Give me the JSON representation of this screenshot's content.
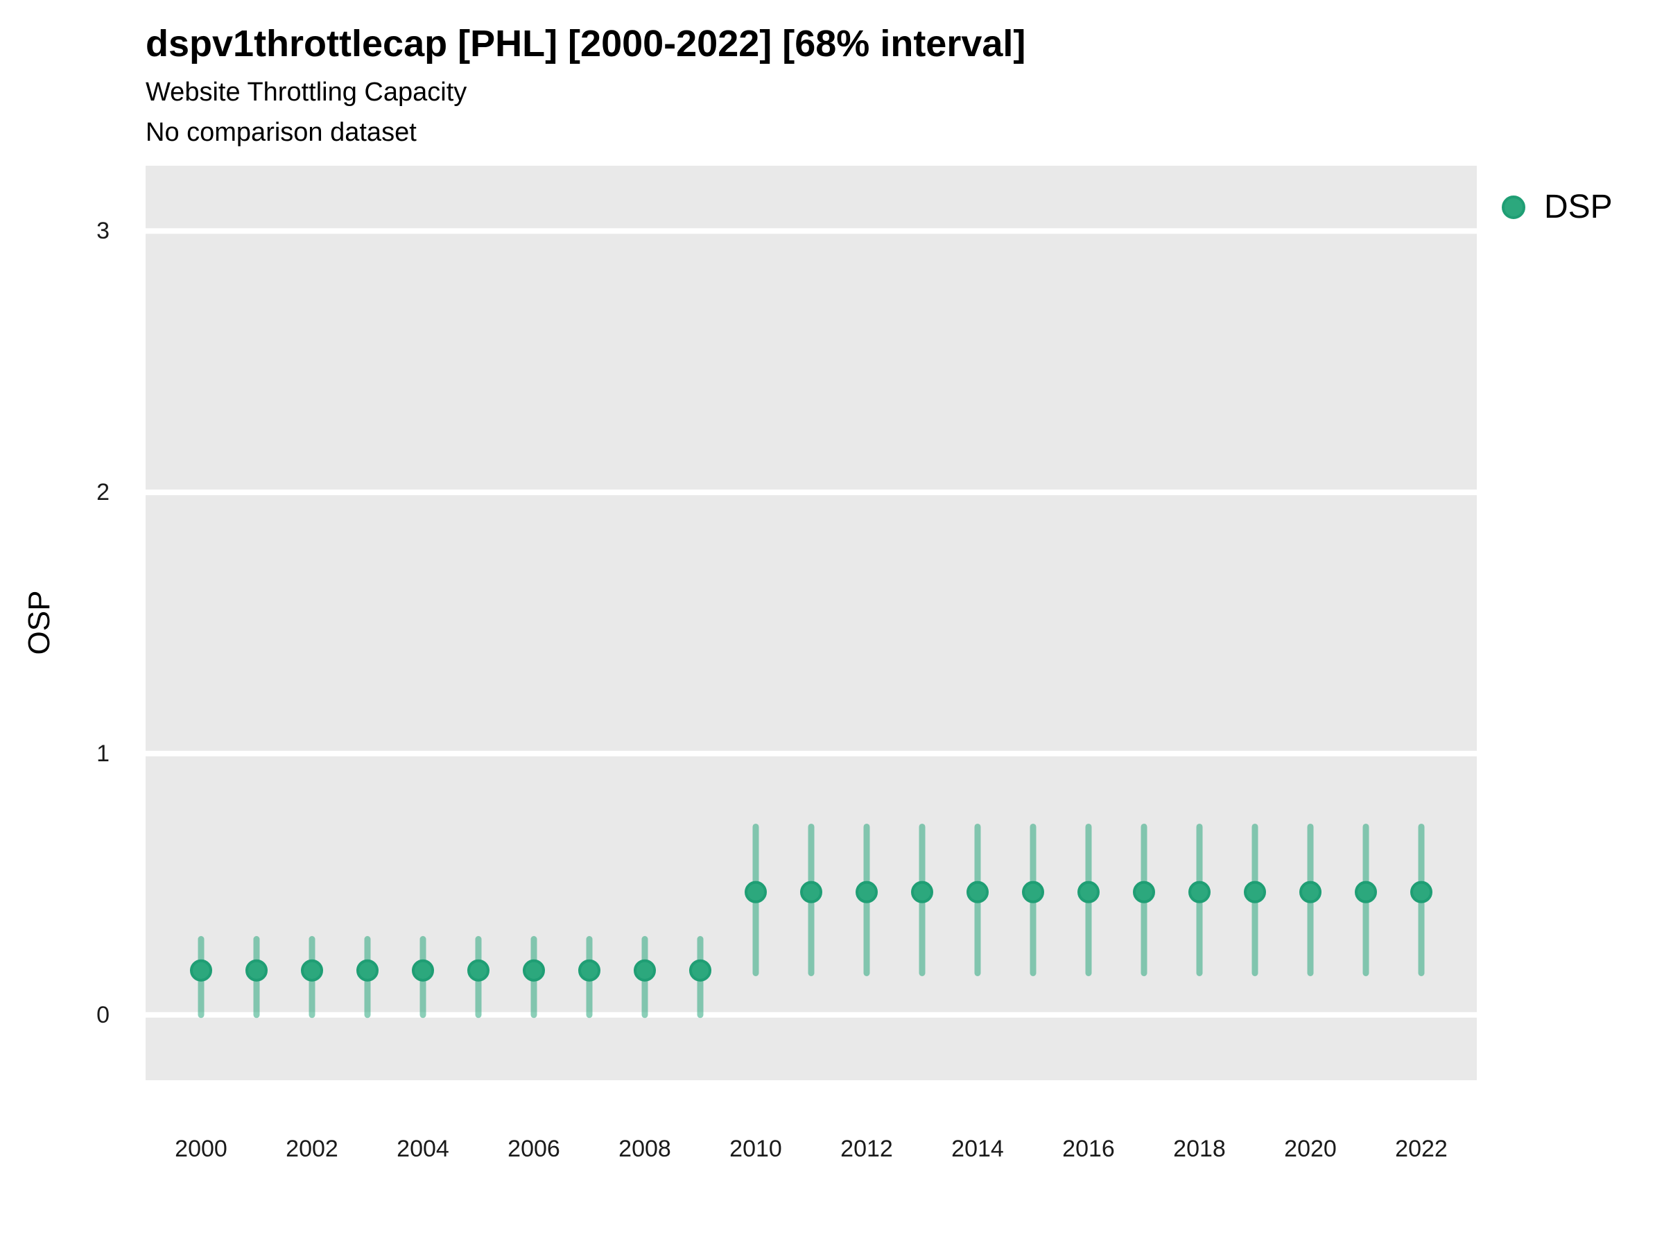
{
  "header": {
    "title": "dspv1throttlecap [PHL] [2000-2022] [68% interval]",
    "subtitle": "Website Throttling Capacity",
    "note": "No comparison dataset"
  },
  "axes": {
    "y_title": "OSP"
  },
  "legend": {
    "items": [
      {
        "label": "DSP",
        "marker": "circle-icon",
        "color": "#2ca87d"
      }
    ]
  },
  "colors": {
    "point_fill": "#2ca87d",
    "point_stroke": "#1f9e74",
    "errorbar": "rgba(44, 168, 125, 0.55)",
    "panel_bg": "#e9e9e9",
    "grid": "#ffffff",
    "tick_text": "#1a1a1a"
  },
  "chart_data": {
    "type": "scatter",
    "title": "dspv1throttlecap [PHL] [2000-2022] [68% interval]",
    "subtitle": "Website Throttling Capacity",
    "note": "No comparison dataset",
    "ylabel": "OSP",
    "xlabel": "",
    "interval": "68%",
    "xlim": [
      1999,
      2023
    ],
    "ylim": [
      -0.25,
      3.25
    ],
    "xticks": [
      2000,
      2002,
      2004,
      2006,
      2008,
      2010,
      2012,
      2014,
      2016,
      2018,
      2020,
      2022
    ],
    "yticks": [
      0,
      1,
      2,
      3
    ],
    "grid": "horizontal-white-on-grey",
    "legend_position": "right-top",
    "series": [
      {
        "name": "DSP",
        "x": [
          2000,
          2001,
          2002,
          2003,
          2004,
          2005,
          2006,
          2007,
          2008,
          2009,
          2010,
          2011,
          2012,
          2013,
          2014,
          2015,
          2016,
          2017,
          2018,
          2019,
          2020,
          2021,
          2022
        ],
        "y": [
          0.17,
          0.17,
          0.17,
          0.17,
          0.17,
          0.17,
          0.17,
          0.17,
          0.17,
          0.17,
          0.47,
          0.47,
          0.47,
          0.47,
          0.47,
          0.47,
          0.47,
          0.47,
          0.47,
          0.47,
          0.47,
          0.47,
          0.47
        ],
        "y_low": [
          0.0,
          0.0,
          0.0,
          0.0,
          0.0,
          0.0,
          0.0,
          0.0,
          0.0,
          0.0,
          0.16,
          0.16,
          0.16,
          0.16,
          0.16,
          0.16,
          0.16,
          0.16,
          0.16,
          0.16,
          0.16,
          0.16,
          0.16
        ],
        "y_high": [
          0.29,
          0.29,
          0.29,
          0.29,
          0.29,
          0.29,
          0.29,
          0.29,
          0.29,
          0.29,
          0.72,
          0.72,
          0.72,
          0.72,
          0.72,
          0.72,
          0.72,
          0.72,
          0.72,
          0.72,
          0.72,
          0.72,
          0.72
        ]
      }
    ]
  }
}
